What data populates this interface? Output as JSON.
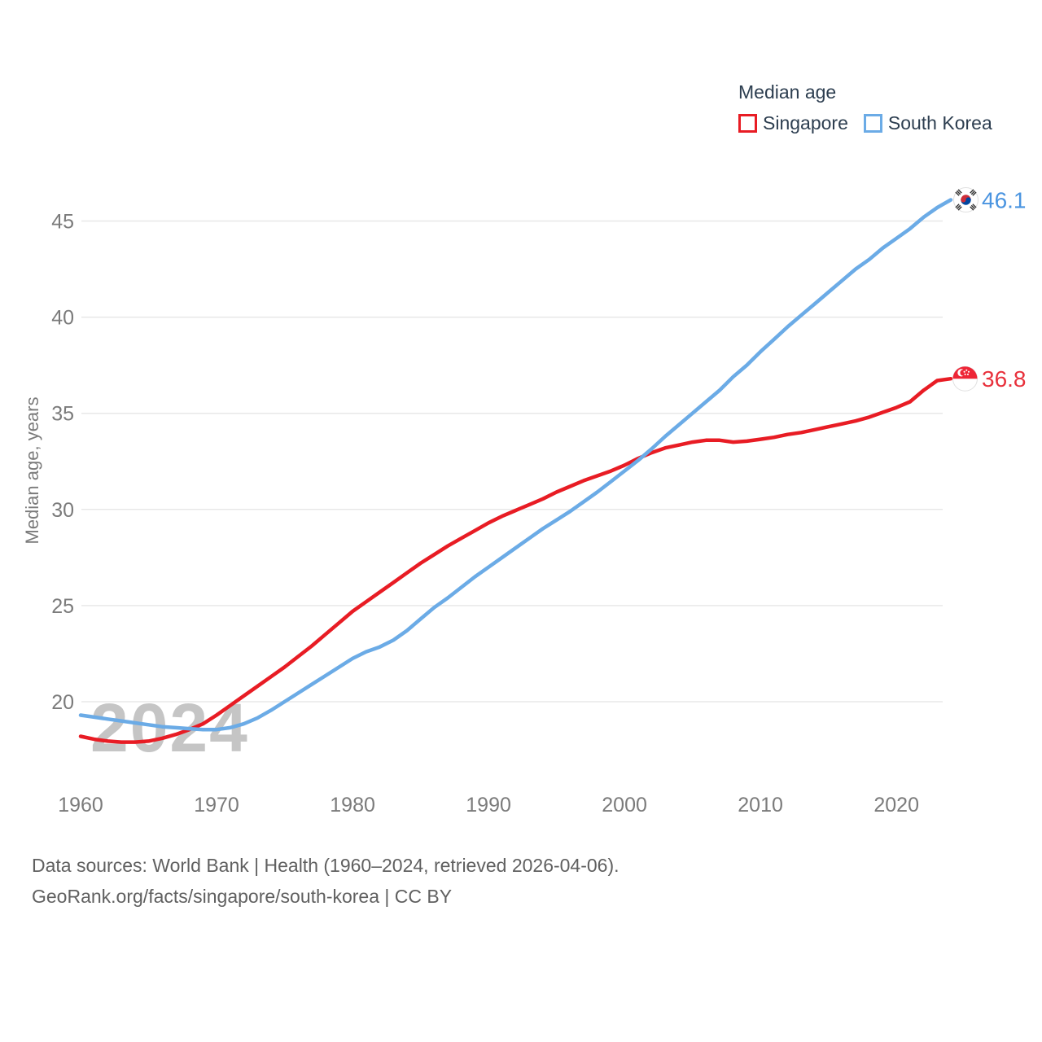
{
  "legend": {
    "title": "Median age"
  },
  "footer": {
    "line1": "Data sources: World Bank | Health (1960–2024, retrieved 2026-04-06).",
    "line2": "GeoRank.org/facts/singapore/south-korea | CC BY"
  },
  "chart_data": {
    "type": "line",
    "title": "Median age",
    "ylabel": "Median age, years",
    "watermark": "2024",
    "grid": "horizontal",
    "legend_position": "top-right",
    "xlim": [
      1960,
      2024
    ],
    "ylim": [
      17.5,
      47
    ],
    "xticks": [
      1960,
      1970,
      1980,
      1990,
      2000,
      2010,
      2020
    ],
    "yticks": [
      20,
      25,
      30,
      35,
      40,
      45
    ],
    "x": [
      1960,
      1961,
      1962,
      1963,
      1964,
      1965,
      1966,
      1967,
      1968,
      1969,
      1970,
      1971,
      1972,
      1973,
      1974,
      1975,
      1976,
      1977,
      1978,
      1979,
      1980,
      1981,
      1982,
      1983,
      1984,
      1985,
      1986,
      1987,
      1988,
      1989,
      1990,
      1991,
      1992,
      1993,
      1994,
      1995,
      1996,
      1997,
      1998,
      1999,
      2000,
      2001,
      2002,
      2003,
      2004,
      2005,
      2006,
      2007,
      2008,
      2009,
      2010,
      2011,
      2012,
      2013,
      2014,
      2015,
      2016,
      2017,
      2018,
      2019,
      2020,
      2021,
      2022,
      2023,
      2024
    ],
    "series": [
      {
        "name": "Singapore",
        "color": "#e81c24",
        "label_color": "#e8313c",
        "end_label": "36.8",
        "icon": "singapore-flag",
        "values": [
          18.2,
          18.05,
          17.95,
          17.9,
          17.9,
          17.95,
          18.1,
          18.3,
          18.55,
          18.85,
          19.3,
          19.8,
          20.3,
          20.8,
          21.3,
          21.8,
          22.35,
          22.9,
          23.5,
          24.1,
          24.7,
          25.2,
          25.7,
          26.2,
          26.7,
          27.2,
          27.65,
          28.1,
          28.5,
          28.9,
          29.3,
          29.65,
          29.95,
          30.25,
          30.55,
          30.9,
          31.2,
          31.5,
          31.75,
          32.0,
          32.3,
          32.65,
          32.95,
          33.2,
          33.35,
          33.5,
          33.6,
          33.6,
          33.5,
          33.55,
          33.65,
          33.75,
          33.9,
          34.0,
          34.15,
          34.3,
          34.45,
          34.6,
          34.8,
          35.05,
          35.3,
          35.6,
          36.2,
          36.7,
          36.8
        ]
      },
      {
        "name": "South Korea",
        "color": "#6babe6",
        "label_color": "#4a94e0",
        "end_label": "46.1",
        "icon": "south-korea-flag",
        "values": [
          19.3,
          19.2,
          19.1,
          19.0,
          18.9,
          18.8,
          18.7,
          18.65,
          18.6,
          18.55,
          18.55,
          18.65,
          18.85,
          19.15,
          19.55,
          20.0,
          20.45,
          20.9,
          21.35,
          21.8,
          22.25,
          22.6,
          22.85,
          23.2,
          23.7,
          24.3,
          24.9,
          25.4,
          25.95,
          26.5,
          27.0,
          27.5,
          28.0,
          28.5,
          29.0,
          29.45,
          29.9,
          30.4,
          30.9,
          31.45,
          32.0,
          32.55,
          33.15,
          33.8,
          34.4,
          35.0,
          35.6,
          36.2,
          36.9,
          37.5,
          38.2,
          38.85,
          39.5,
          40.1,
          40.7,
          41.3,
          41.9,
          42.5,
          43.0,
          43.6,
          44.1,
          44.6,
          45.2,
          45.7,
          46.1
        ]
      }
    ]
  }
}
